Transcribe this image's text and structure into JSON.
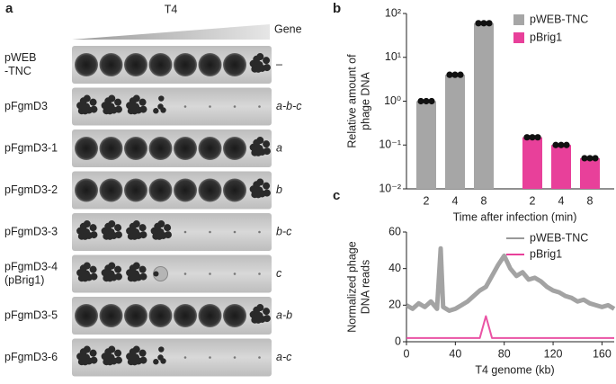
{
  "panel_a": {
    "label": "a",
    "phage": "T4",
    "gene_header": "Gene",
    "rows": [
      {
        "strain": [
          "pWEB",
          "-TNC"
        ],
        "gene": "–"
      },
      {
        "strain": [
          "pFgmD3"
        ],
        "gene": "a-b-c"
      },
      {
        "strain": [
          "pFgmD3-1"
        ],
        "gene": "a"
      },
      {
        "strain": [
          "pFgmD3-2"
        ],
        "gene": "b"
      },
      {
        "strain": [
          "pFgmD3-3"
        ],
        "gene": "b-c"
      },
      {
        "strain": [
          "pFgmD3-4",
          "(pBrig1)"
        ],
        "gene": "c"
      },
      {
        "strain": [
          "pFgmD3-5"
        ],
        "gene": "a-b"
      },
      {
        "strain": [
          "pFgmD3-6"
        ],
        "gene": "a-c"
      }
    ]
  },
  "chart_data": [
    {
      "label": "b",
      "type": "bar",
      "log_scale": true,
      "ylabel": [
        "Relative amount of",
        "phage DNA"
      ],
      "xlabel": "Time after infection (min)",
      "categories": [
        "2",
        "4",
        "8",
        "2",
        "4",
        "8"
      ],
      "series": [
        {
          "name": "pWEB-TNC",
          "color": "#a6a6a6",
          "values": [
            1,
            4,
            60,
            null,
            null,
            null
          ]
        },
        {
          "name": "pBrig1",
          "color": "#e8409a",
          "values": [
            null,
            null,
            null,
            0.15,
            0.1,
            0.05
          ]
        }
      ],
      "ylim": [
        0.01,
        100
      ],
      "yticks": [
        {
          "value": 0.01,
          "label": "10⁻²"
        },
        {
          "value": 0.1,
          "label": "10⁻¹"
        },
        {
          "value": 1,
          "label": "10⁰"
        },
        {
          "value": 10,
          "label": "10¹"
        },
        {
          "value": 100,
          "label": "10²"
        }
      ],
      "legend": "top-right"
    },
    {
      "label": "c",
      "type": "line",
      "ylabel": [
        "Normalized phage",
        "DNA reads"
      ],
      "xlabel": "T4 genome (kb)",
      "x": [
        0,
        5,
        10,
        15,
        20,
        25,
        28,
        30,
        35,
        40,
        45,
        50,
        55,
        60,
        65,
        70,
        75,
        80,
        85,
        90,
        95,
        100,
        105,
        110,
        115,
        120,
        125,
        130,
        135,
        140,
        145,
        150,
        155,
        160,
        165,
        170
      ],
      "series": [
        {
          "name": "pWEB-TNC",
          "color": "#999999",
          "values": [
            20,
            18,
            21,
            19,
            22,
            18,
            51,
            19,
            17,
            18,
            20,
            22,
            25,
            28,
            30,
            36,
            42,
            47,
            40,
            36,
            38,
            34,
            35,
            33,
            30,
            28,
            27,
            25,
            24,
            22,
            23,
            21,
            20,
            19,
            20,
            18
          ]
        },
        {
          "name": "pBrig1",
          "color": "#e8409a",
          "values": [
            2,
            2,
            2,
            2,
            2,
            2,
            2,
            2,
            2,
            2,
            2,
            2,
            2,
            2,
            14,
            2,
            2,
            2,
            2,
            2,
            2,
            2,
            2,
            2,
            2,
            2,
            2,
            2,
            2,
            2,
            2,
            2,
            2,
            2,
            2,
            2
          ]
        }
      ],
      "xlim": [
        0,
        170
      ],
      "xticks": [
        0,
        40,
        80,
        120,
        160
      ],
      "ylim": [
        0,
        60
      ],
      "yticks": [
        0,
        20,
        40,
        60
      ],
      "legend": "top-right"
    }
  ]
}
